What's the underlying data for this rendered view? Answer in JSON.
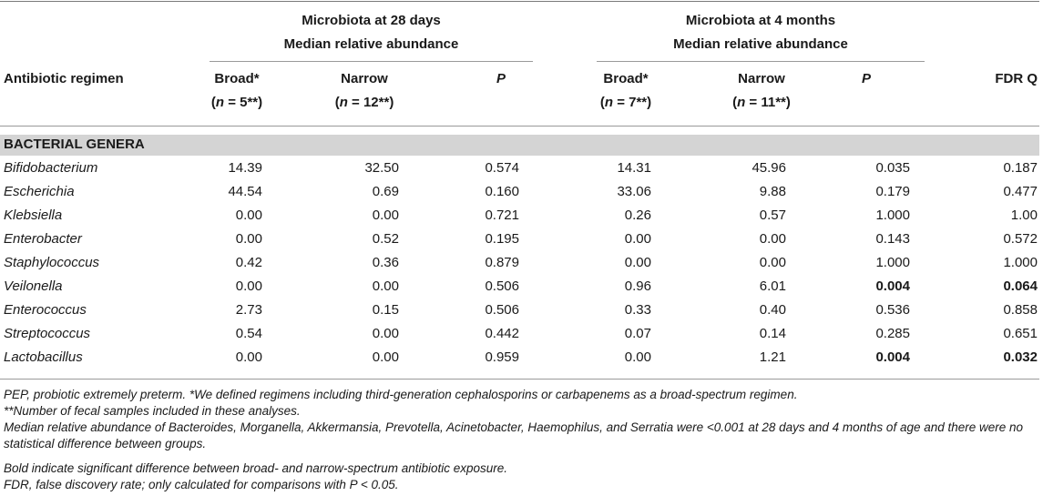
{
  "header": {
    "group_28d_line1": "Microbiota at 28 days",
    "group_28d_line2": "Median relative abundance",
    "group_4m_line1": "Microbiota at 4 months",
    "group_4m_line2": "Median relative abundance",
    "row_label": "Antibiotic regimen",
    "broad_28": "Broad*",
    "broad_28_n_label": "n",
    "broad_28_n_value": " = 5**)",
    "narrow_28": "Narrow",
    "narrow_28_n_label": "n",
    "narrow_28_n_value": " = 12**)",
    "p_28": "P",
    "broad_4m": "Broad*",
    "broad_4m_n_label": "n",
    "broad_4m_n_value": " = 7**)",
    "narrow_4m": "Narrow",
    "narrow_4m_n_label": "n",
    "narrow_4m_n_value": " = 11**)",
    "p_4m": "P",
    "fdr": "FDR Q"
  },
  "section_label": "BACTERIAL GENERA",
  "rows": [
    {
      "genus": "Bifidobacterium",
      "broad_28": "14.39",
      "narrow_28": "32.50",
      "p_28": "0.574",
      "broad_4m": "14.31",
      "narrow_4m": "45.96",
      "p_4m": "0.035",
      "fdr": "0.187",
      "bold": false
    },
    {
      "genus": "Escherichia",
      "broad_28": "44.54",
      "narrow_28": "0.69",
      "p_28": "0.160",
      "broad_4m": "33.06",
      "narrow_4m": "9.88",
      "p_4m": "0.179",
      "fdr": "0.477",
      "bold": false
    },
    {
      "genus": "Klebsiella",
      "broad_28": "0.00",
      "narrow_28": "0.00",
      "p_28": "0.721",
      "broad_4m": "0.26",
      "narrow_4m": "0.57",
      "p_4m": "1.000",
      "fdr": "1.00",
      "bold": false
    },
    {
      "genus": "Enterobacter",
      "broad_28": "0.00",
      "narrow_28": "0.52",
      "p_28": "0.195",
      "broad_4m": "0.00",
      "narrow_4m": "0.00",
      "p_4m": "0.143",
      "fdr": "0.572",
      "bold": false
    },
    {
      "genus": "Staphylococcus",
      "broad_28": "0.42",
      "narrow_28": "0.36",
      "p_28": "0.879",
      "broad_4m": "0.00",
      "narrow_4m": "0.00",
      "p_4m": "1.000",
      "fdr": "1.000",
      "bold": false
    },
    {
      "genus": "Veilonella",
      "broad_28": "0.00",
      "narrow_28": "0.00",
      "p_28": "0.506",
      "broad_4m": "0.96",
      "narrow_4m": "6.01",
      "p_4m": "0.004",
      "fdr": "0.064",
      "bold": true
    },
    {
      "genus": "Enterococcus",
      "broad_28": "2.73",
      "narrow_28": "0.15",
      "p_28": "0.506",
      "broad_4m": "0.33",
      "narrow_4m": "0.40",
      "p_4m": "0.536",
      "fdr": "0.858",
      "bold": false
    },
    {
      "genus": "Streptococcus",
      "broad_28": "0.54",
      "narrow_28": "0.00",
      "p_28": "0.442",
      "broad_4m": "0.07",
      "narrow_4m": "0.14",
      "p_4m": "0.285",
      "fdr": "0.651",
      "bold": false
    },
    {
      "genus": "Lactobacillus",
      "broad_28": "0.00",
      "narrow_28": "0.00",
      "p_28": "0.959",
      "broad_4m": "0.00",
      "narrow_4m": "1.21",
      "p_4m": "0.004",
      "fdr": "0.032",
      "bold": true
    }
  ],
  "footnotes": [
    "PEP, probiotic extremely preterm. *We defined regimens including third-generation cephalosporins or carbapenems as a broad-spectrum regimen.",
    "**Number of fecal samples included in these analyses.",
    "Median relative abundance of Bacteroides, Morganella, Akkermansia, Prevotella, Acinetobacter, Haemophilus, and Serratia were <0.001 at 28 days and 4 months of age and there were no statistical difference between groups.",
    "Bold indicate significant difference between broad- and narrow-spectrum antibiotic exposure.",
    "FDR, false discovery rate; only calculated for comparisons with P < 0.05."
  ]
}
